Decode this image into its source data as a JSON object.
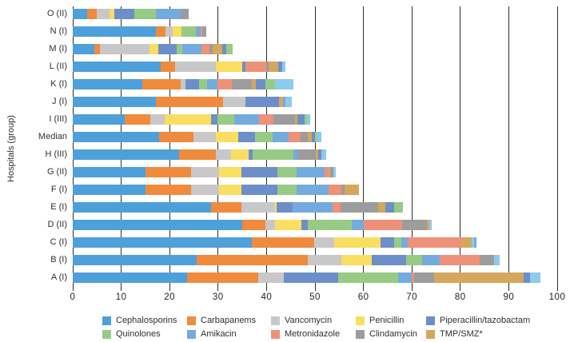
{
  "chart_data": {
    "type": "bar",
    "orientation": "horizontal",
    "stacked": true,
    "title": "",
    "xlabel": "",
    "ylabel": "Hospitals (group)",
    "xlim": [
      0,
      100
    ],
    "x_ticks": [
      0,
      10,
      20,
      30,
      40,
      50,
      60,
      70,
      80,
      90,
      100
    ],
    "grid": "vertical-black-lines-every-10-behind-bars",
    "legend_position": "bottom",
    "palette": {
      "ceph": "#4EA0DA",
      "carb": "#F08A3D",
      "vanc": "#C8C8C8",
      "pen": "#FADE60",
      "pip": "#6D8FC9",
      "quin": "#97CB85",
      "amik": "#74ABDE",
      "metro": "#EE9179",
      "clinda": "#9C9C9C",
      "tmp": "#D5A75C",
      "cyan": "#8BCBEE"
    },
    "legend": [
      {
        "label": "Cephalosporins",
        "color": "ceph"
      },
      {
        "label": "Carbapanems",
        "color": "carb"
      },
      {
        "label": "Vancomycin",
        "color": "vanc"
      },
      {
        "label": "Penicillin",
        "color": "pen"
      },
      {
        "label": "Piperacillin/tazobactam",
        "color": "pip"
      },
      {
        "label": "Quinolones",
        "color": "quin"
      },
      {
        "label": "Amikacin",
        "color": "amik"
      },
      {
        "label": "Metronidazole",
        "color": "metro"
      },
      {
        "label": "Clindamycin",
        "color": "clinda"
      },
      {
        "label": "TMP/SMZ*",
        "color": "tmp"
      }
    ],
    "rows": [
      {
        "label": "O (II)",
        "segments": [
          [
            "ceph",
            3.0
          ],
          [
            "carb",
            1.9
          ],
          [
            "vanc",
            2.7
          ],
          [
            "pen",
            1.0
          ],
          [
            "pip",
            4.1
          ],
          [
            "quin",
            4.4
          ],
          [
            "amik",
            5.1
          ],
          [
            "clinda",
            1.8
          ]
        ]
      },
      {
        "label": "N (I)",
        "segments": [
          [
            "ceph",
            17.2
          ],
          [
            "carb",
            1.9
          ],
          [
            "vanc",
            1.6
          ],
          [
            "pen",
            1.8
          ],
          [
            "quin",
            3.0
          ],
          [
            "amik",
            0.9
          ],
          [
            "metro",
            0.4
          ],
          [
            "clinda",
            0.7
          ]
        ]
      },
      {
        "label": "M (I)",
        "segments": [
          [
            "ceph",
            4.4
          ],
          [
            "carb",
            1.2
          ],
          [
            "vanc",
            10.2
          ],
          [
            "pen",
            1.9
          ],
          [
            "pip",
            3.8
          ],
          [
            "quin",
            1.1
          ],
          [
            "amik",
            4.0
          ],
          [
            "metro",
            1.7
          ],
          [
            "clinda",
            0.6
          ],
          [
            "tmp",
            2.0
          ],
          [
            "pip",
            0.8
          ],
          [
            "quin",
            1.3
          ]
        ]
      },
      {
        "label": "L (II)",
        "segments": [
          [
            "ceph",
            18.2
          ],
          [
            "carb",
            2.9
          ],
          [
            "vanc",
            8.4
          ],
          [
            "pen",
            5.5
          ],
          [
            "pip",
            0.7
          ],
          [
            "metro",
            4.2
          ],
          [
            "clinda",
            0.6
          ],
          [
            "tmp",
            2.0
          ],
          [
            "pip",
            0.7
          ],
          [
            "cyan",
            0.7
          ]
        ]
      },
      {
        "label": "K (I)",
        "segments": [
          [
            "ceph",
            14.3
          ],
          [
            "carb",
            8.0
          ],
          [
            "vanc",
            0.9
          ],
          [
            "pip",
            2.8
          ],
          [
            "quin",
            1.7
          ],
          [
            "amik",
            2.1
          ],
          [
            "metro",
            3.0
          ],
          [
            "clinda",
            4.2
          ],
          [
            "tmp",
            0.8
          ],
          [
            "pip",
            2.0
          ],
          [
            "quin",
            1.9
          ],
          [
            "cyan",
            3.9
          ]
        ]
      },
      {
        "label": "J (I)",
        "segments": [
          [
            "ceph",
            17.2
          ],
          [
            "carb",
            13.9
          ],
          [
            "vanc",
            4.6
          ],
          [
            "pip",
            6.9
          ],
          [
            "tmp",
            0.8
          ],
          [
            "amik",
            0.6
          ],
          [
            "cyan",
            1.2
          ]
        ]
      },
      {
        "label": "I (III)",
        "segments": [
          [
            "ceph",
            10.7
          ],
          [
            "carb",
            5.3
          ],
          [
            "vanc",
            3.0
          ],
          [
            "pen",
            9.5
          ],
          [
            "pip",
            1.3
          ],
          [
            "quin",
            3.5
          ],
          [
            "amik",
            5.1
          ],
          [
            "metro",
            3.0
          ],
          [
            "clinda",
            4.4
          ],
          [
            "tmp",
            0.6
          ],
          [
            "pip",
            1.4
          ],
          [
            "quin",
            0.6
          ],
          [
            "cyan",
            0.7
          ]
        ]
      },
      {
        "label": "Median",
        "segments": [
          [
            "ceph",
            17.8
          ],
          [
            "carb",
            7.1
          ],
          [
            "vanc",
            4.7
          ],
          [
            "pen",
            4.6
          ],
          [
            "pip",
            3.4
          ],
          [
            "quin",
            3.7
          ],
          [
            "amik",
            3.3
          ],
          [
            "metro",
            2.4
          ],
          [
            "clinda",
            1.5
          ],
          [
            "tmp",
            0.8
          ],
          [
            "pip",
            0.7
          ],
          [
            "quin",
            0.6
          ],
          [
            "cyan",
            0.7
          ]
        ]
      },
      {
        "label": "H (III)",
        "segments": [
          [
            "ceph",
            22.0
          ],
          [
            "carb",
            7.6
          ],
          [
            "vanc",
            3.1
          ],
          [
            "pen",
            3.6
          ],
          [
            "pip",
            0.9
          ],
          [
            "quin",
            8.4
          ],
          [
            "amik",
            0.8
          ],
          [
            "clinda",
            3.7
          ],
          [
            "tmp",
            0.6
          ],
          [
            "pip",
            0.7
          ],
          [
            "cyan",
            0.9
          ]
        ]
      },
      {
        "label": "G (II)",
        "segments": [
          [
            "ceph",
            15.0
          ],
          [
            "carb",
            9.5
          ],
          [
            "vanc",
            5.7
          ],
          [
            "pen",
            4.6
          ],
          [
            "pip",
            7.4
          ],
          [
            "quin",
            4.0
          ],
          [
            "amik",
            5.8
          ],
          [
            "metro",
            0.8
          ],
          [
            "tmp",
            0.4
          ],
          [
            "clinda",
            0.6
          ],
          [
            "cyan",
            0.6
          ]
        ]
      },
      {
        "label": "F (I)",
        "segments": [
          [
            "ceph",
            15.0
          ],
          [
            "carb",
            9.5
          ],
          [
            "vanc",
            5.7
          ],
          [
            "pen",
            4.6
          ],
          [
            "pip",
            7.4
          ],
          [
            "quin",
            4.0
          ],
          [
            "amik",
            6.6
          ],
          [
            "metro",
            2.6
          ],
          [
            "clinda",
            0.8
          ],
          [
            "tmp",
            2.9
          ]
        ]
      },
      {
        "label": "E (I)",
        "segments": [
          [
            "ceph",
            28.5
          ],
          [
            "carb",
            6.4
          ],
          [
            "vanc",
            6.8
          ],
          [
            "pen",
            0.4
          ],
          [
            "pip",
            3.3
          ],
          [
            "amik",
            8.2
          ],
          [
            "metro",
            1.7
          ],
          [
            "clinda",
            7.7
          ],
          [
            "tmp",
            1.5
          ],
          [
            "pip",
            1.8
          ],
          [
            "quin",
            1.9
          ]
        ]
      },
      {
        "label": "D (II)",
        "segments": [
          [
            "ceph",
            35.0
          ],
          [
            "carb",
            4.8
          ],
          [
            "vanc",
            2.0
          ],
          [
            "pen",
            5.4
          ],
          [
            "pip",
            1.3
          ],
          [
            "quin",
            9.1
          ],
          [
            "amik",
            2.5
          ],
          [
            "metro",
            7.9
          ],
          [
            "clinda",
            5.1
          ],
          [
            "tmp",
            0.6
          ],
          [
            "cyan",
            0.4
          ]
        ]
      },
      {
        "label": "C (I)",
        "segments": [
          [
            "ceph",
            37.0
          ],
          [
            "carb",
            12.9
          ],
          [
            "vanc",
            4.0
          ],
          [
            "pen",
            9.6
          ],
          [
            "pip",
            2.9
          ],
          [
            "quin",
            1.4
          ],
          [
            "amik",
            1.4
          ],
          [
            "metro",
            11.2
          ],
          [
            "tmp",
            2.0
          ],
          [
            "cyan",
            0.5
          ],
          [
            "amik",
            0.5
          ]
        ]
      },
      {
        "label": "B (I)",
        "segments": [
          [
            "ceph",
            25.6
          ],
          [
            "carb",
            23.0
          ],
          [
            "vanc",
            6.9
          ],
          [
            "pen",
            6.3
          ],
          [
            "pip",
            7.0
          ],
          [
            "quin",
            3.4
          ],
          [
            "amik",
            3.5
          ],
          [
            "metro",
            8.3
          ],
          [
            "clinda",
            3.0
          ],
          [
            "cyan",
            1.1
          ]
        ]
      },
      {
        "label": "A (I)",
        "segments": [
          [
            "ceph",
            23.6
          ],
          [
            "carb",
            14.6
          ],
          [
            "vanc",
            5.3
          ],
          [
            "pip",
            11.3
          ],
          [
            "quin",
            12.4
          ],
          [
            "amik",
            2.8
          ],
          [
            "metro",
            0.5
          ],
          [
            "clinda",
            4.1
          ],
          [
            "tmp",
            18.5
          ],
          [
            "pip",
            1.3
          ],
          [
            "cyan",
            2.1
          ]
        ]
      }
    ]
  }
}
